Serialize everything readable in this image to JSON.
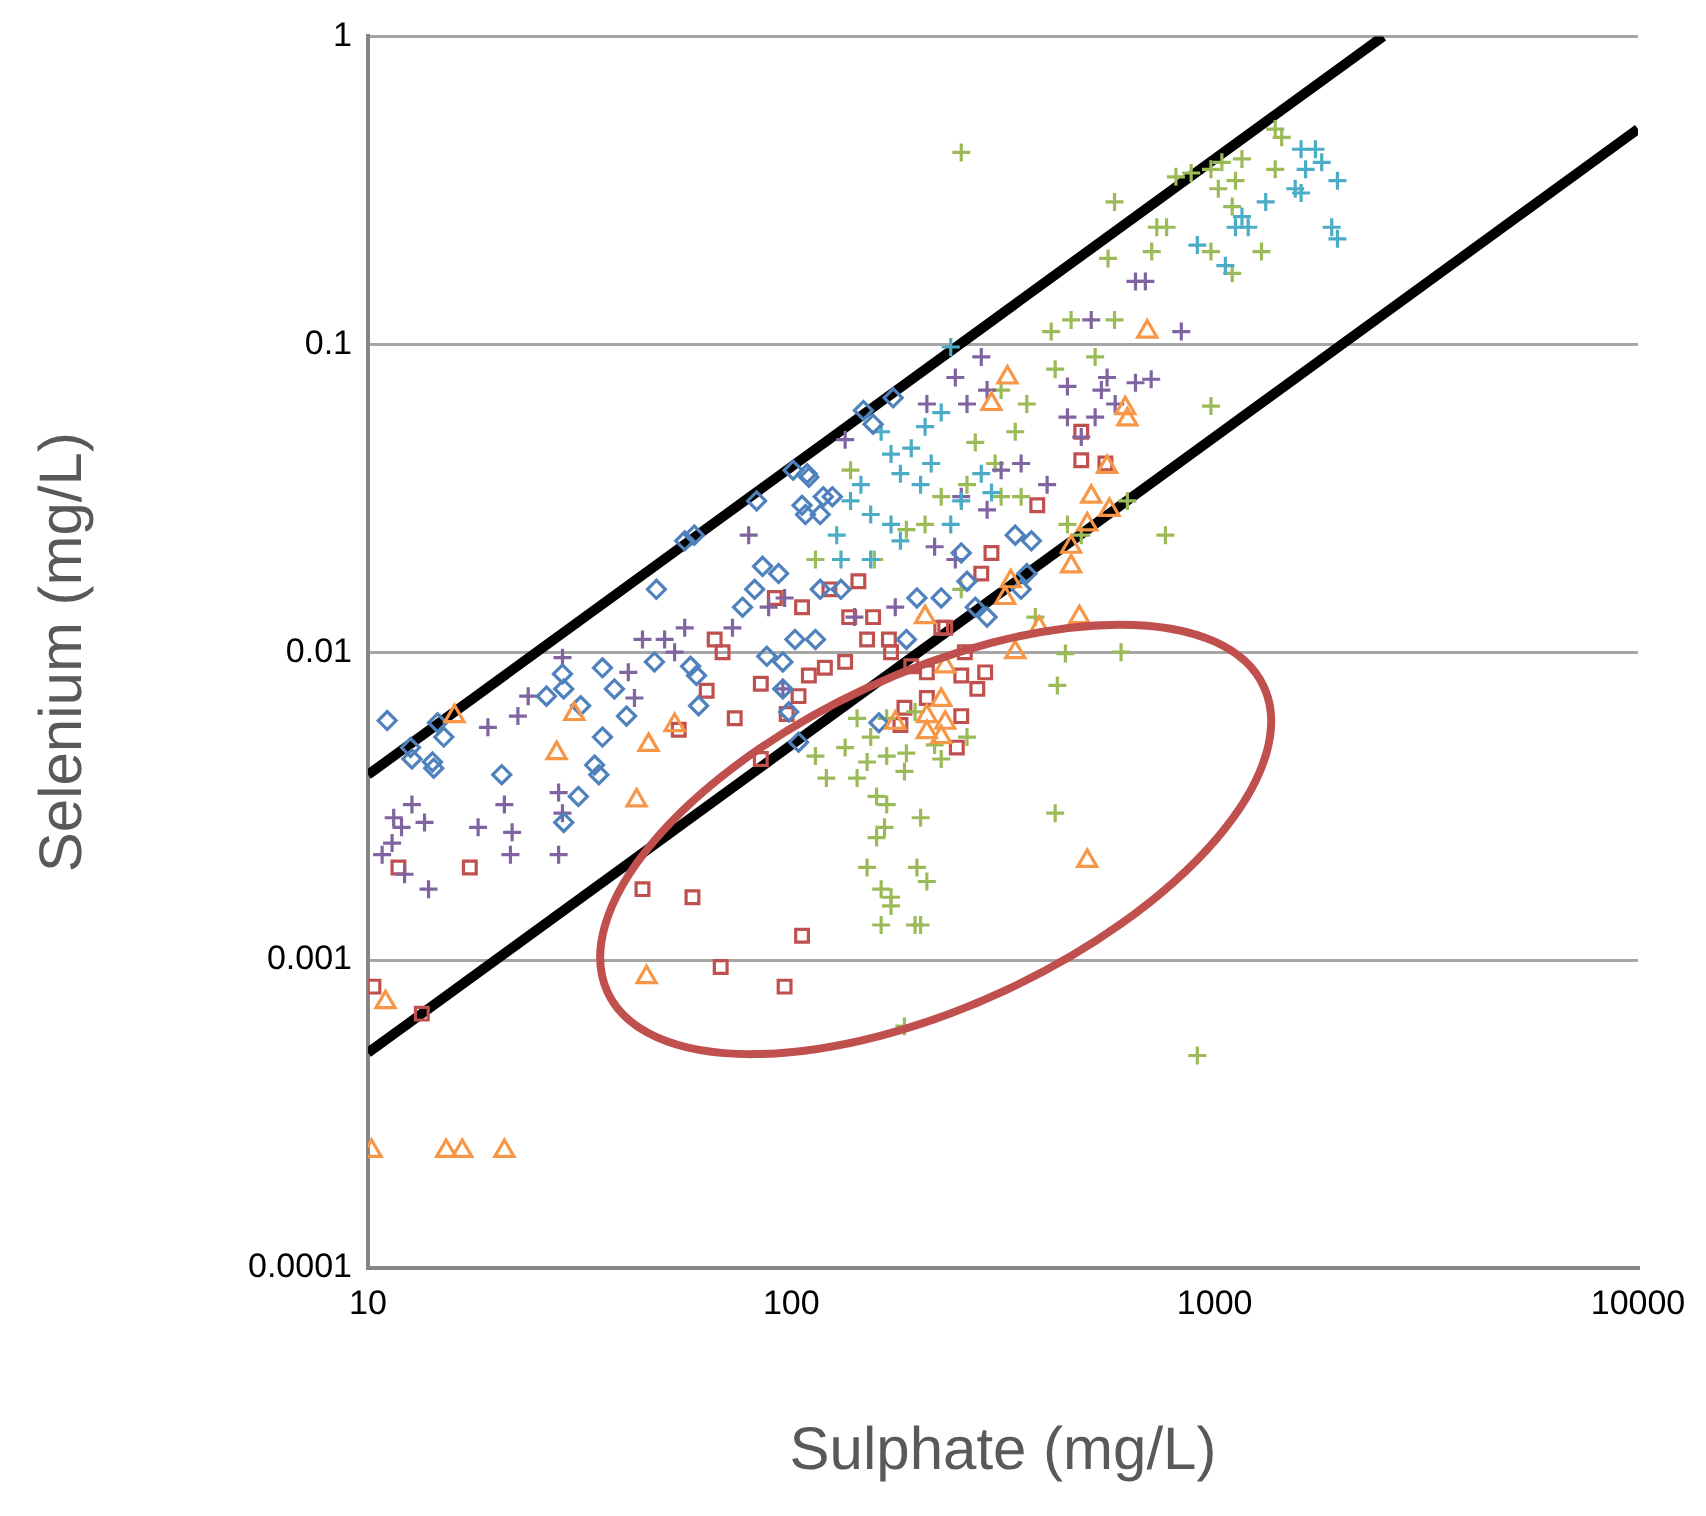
{
  "chart_data": {
    "type": "scatter",
    "xlabel": "Sulphate (mg/L)",
    "ylabel": "Selenium (mg/L)",
    "log": "xy",
    "xlim": [
      10,
      10000
    ],
    "xticks": [
      10,
      100,
      1000,
      10000
    ],
    "ylim": [
      0.0001,
      1
    ],
    "yticks": [
      0.0001,
      0.001,
      0.01,
      0.1,
      1
    ],
    "grid": "y",
    "legend": false,
    "series": [
      {
        "color": "#4f81bd",
        "marker": "diamond",
        "x": [
          11.1,
          12.6,
          12.7,
          14.2,
          14.3,
          14.6,
          15.1,
          20.7,
          26.4,
          28.8,
          29.0,
          31.4,
          29.0,
          31.8,
          35.8,
          35.8,
          34.3,
          35.1,
          38.2,
          40.8,
          47.5,
          48.0,
          56.0,
          59.0,
          57.8,
          59.7,
          60.4,
          76.7,
          81.9,
          82.8,
          85.5,
          93.3,
          101,
          106,
          110,
          119,
          125,
          148,
          156,
          87.5,
          95.5,
          95.5,
          98.6,
          102,
          114,
          104,
          161,
          174,
          109,
          108,
          117,
          117,
          131,
          198,
          226,
          260,
          272,
          187,
          338,
          369,
          360,
          349,
          290,
          252
        ],
        "values": [
          0.006,
          0.0049,
          0.0045,
          0.0044,
          0.0042,
          0.0059,
          0.0053,
          0.004,
          0.0072,
          0.0085,
          0.0076,
          0.0034,
          0.0028,
          0.0067,
          0.0089,
          0.0053,
          0.0043,
          0.004,
          0.0076,
          0.0062,
          0.0093,
          0.016,
          0.023,
          0.024,
          0.009,
          0.0084,
          0.0067,
          0.014,
          0.016,
          0.031,
          0.019,
          0.018,
          0.039,
          0.03,
          0.037,
          0.032,
          0.032,
          0.061,
          0.055,
          0.0097,
          0.0093,
          0.0076,
          0.0064,
          0.011,
          0.011,
          0.0051,
          0.0059,
          0.067,
          0.038,
          0.028,
          0.028,
          0.016,
          0.016,
          0.015,
          0.015,
          0.017,
          0.014,
          0.011,
          0.024,
          0.023,
          0.018,
          0.016,
          0.013,
          0.021
        ]
      },
      {
        "color": "#4bacc6",
        "marker": "cross",
        "x": [
          238,
          163,
          172,
          181,
          192,
          202,
          146,
          138,
          154,
          172,
          214,
          226,
          207,
          128,
          131,
          154,
          181,
          252,
          281,
          297,
          238,
          1600,
          1730,
          1640,
          1790,
          1550,
          1600,
          1950,
          1320,
          1160,
          1120,
          1200,
          910,
          1060,
          1890,
          1950
        ],
        "values": [
          0.098,
          0.052,
          0.044,
          0.038,
          0.046,
          0.035,
          0.035,
          0.031,
          0.028,
          0.026,
          0.041,
          0.06,
          0.054,
          0.024,
          0.02,
          0.02,
          0.023,
          0.031,
          0.038,
          0.033,
          0.026,
          0.43,
          0.43,
          0.37,
          0.39,
          0.32,
          0.31,
          0.34,
          0.29,
          0.26,
          0.24,
          0.24,
          0.21,
          0.18,
          0.24,
          0.22
        ]
      },
      {
        "color": "#8064a2",
        "marker": "cross",
        "x": [
          10.8,
          11.4,
          12.0,
          12.7,
          13.6,
          12.2,
          13.9,
          11.5,
          19.2,
          18.2,
          21.7,
          21.9,
          21.0,
          22.6,
          23.9,
          28.8,
          28.2,
          28.2,
          28.8,
          41.2,
          42.6,
          44.5,
          50.2,
          53.0,
          56.0,
          79.3,
          88.4,
          96.4,
          134,
          95.5,
          72.6,
          650,
          686,
          834,
          511,
          557,
          540,
          650,
          708,
          582,
          522,
          244,
          281,
          290,
          260,
          209,
          449,
          349,
          313,
          402,
          252,
          290,
          218,
          244,
          176,
          141,
          449,
          484
        ],
        "values": [
          0.0022,
          0.0024,
          0.0027,
          0.0032,
          0.0028,
          0.0019,
          0.0017,
          0.0029,
          0.0057,
          0.0027,
          0.0022,
          0.0026,
          0.0032,
          0.0062,
          0.0072,
          0.0096,
          0.0035,
          0.0022,
          0.003,
          0.0086,
          0.0071,
          0.011,
          0.011,
          0.01,
          0.012,
          0.024,
          0.014,
          0.015,
          0.049,
          0.0076,
          0.012,
          0.16,
          0.16,
          0.11,
          0.12,
          0.078,
          0.071,
          0.075,
          0.077,
          0.064,
          0.058,
          0.078,
          0.091,
          0.071,
          0.064,
          0.064,
          0.058,
          0.041,
          0.039,
          0.035,
          0.032,
          0.029,
          0.022,
          0.02,
          0.014,
          0.013,
          0.073,
          0.05
        ]
      },
      {
        "color": "#9bbb59",
        "marker": "cross",
        "x": [
          1390,
          1440,
          1160,
          1040,
          980,
          880,
          810,
          1390,
          1120,
          1020,
          1100,
          580,
          770,
          730,
          710,
          560,
          1290,
          980,
          1100,
          252,
          458,
          580,
          522,
          411,
          420,
          360,
          313,
          338,
          272,
          303,
          260,
          226,
          207,
          187,
          313,
          349,
          449,
          484,
          157,
          138,
          114,
          622,
          765,
          980,
          252,
          377,
          134,
          114,
          121,
          143,
          151,
          159,
          168,
          166,
          159,
          151,
          163,
          172,
          172,
          163,
          198,
          209,
          202,
          196,
          202,
          185,
          187,
          218,
          226,
          260,
          168,
          154,
          143,
          168,
          196,
          185,
          420,
          425,
          444,
          601,
          910
        ],
        "values": [
          0.5,
          0.47,
          0.4,
          0.39,
          0.37,
          0.36,
          0.35,
          0.37,
          0.34,
          0.32,
          0.28,
          0.29,
          0.24,
          0.24,
          0.2,
          0.19,
          0.2,
          0.2,
          0.17,
          0.42,
          0.12,
          0.12,
          0.091,
          0.11,
          0.083,
          0.064,
          0.071,
          0.052,
          0.048,
          0.041,
          0.035,
          0.032,
          0.026,
          0.025,
          0.032,
          0.032,
          0.026,
          0.024,
          0.02,
          0.039,
          0.02,
          0.031,
          0.024,
          0.063,
          0.016,
          0.013,
          0.0049,
          0.0046,
          0.0039,
          0.0039,
          0.0044,
          0.0034,
          0.0032,
          0.0027,
          0.0025,
          0.002,
          0.0017,
          0.0016,
          0.0015,
          0.0013,
          0.002,
          0.0018,
          0.0013,
          0.0013,
          0.0029,
          0.0041,
          0.0047,
          0.005,
          0.0045,
          0.0053,
          0.0046,
          0.0053,
          0.0061,
          0.0061,
          0.0064,
          0.00061,
          0.003,
          0.0078,
          0.0099,
          0.01,
          0.00049
        ]
      },
      {
        "color": "#c0504d",
        "marker": "square",
        "x": [
          11.8,
          17.4,
          44.5,
          58.4,
          65.9,
          68.8,
          63.1,
          73.5,
          54.2,
          84.7,
          84.7,
          97.5,
          104,
          110,
          120,
          134,
          106,
          123,
          144,
          137,
          151,
          156,
          170,
          91.4,
          106,
          10.3,
          13.4,
          68.1,
          96.4,
          172,
          192,
          209,
          252,
          287,
          275,
          252,
          209,
          185,
          181,
          246,
          226,
          257,
          484,
          484,
          552,
          381,
          297,
          281,
          231
        ],
        "values": [
          0.002,
          0.002,
          0.0017,
          0.0016,
          0.011,
          0.01,
          0.0075,
          0.0061,
          0.0056,
          0.0079,
          0.0045,
          0.0063,
          0.0072,
          0.0084,
          0.0089,
          0.0093,
          0.014,
          0.016,
          0.017,
          0.013,
          0.011,
          0.013,
          0.011,
          0.015,
          0.0012,
          0.00082,
          0.00067,
          0.00095,
          0.00082,
          0.01,
          0.009,
          0.0086,
          0.0084,
          0.0086,
          0.0076,
          0.0062,
          0.0071,
          0.0066,
          0.0058,
          0.0049,
          0.012,
          0.01,
          0.052,
          0.042,
          0.041,
          0.03,
          0.021,
          0.018,
          0.012
        ]
      },
      {
        "color": "#f79646",
        "marker": "triangle",
        "x": [
          16.0,
          30.7,
          27.9,
          53.0,
          46.0,
          43.1,
          11.0,
          10.2,
          15.3,
          16.7,
          21.0,
          45.5,
          500,
          226,
          209,
          231,
          209,
          226,
          176,
          231,
          207,
          385,
          338,
          479,
          693,
          615,
          622,
          297,
          324,
          557,
          511,
          564,
          500,
          458,
          458,
          330,
          320
        ],
        "values": [
          0.0062,
          0.0063,
          0.0047,
          0.0058,
          0.005,
          0.0033,
          0.00073,
          0.00024,
          0.00024,
          0.00024,
          0.00024,
          0.00088,
          0.0021,
          0.007,
          0.0062,
          0.0059,
          0.0055,
          0.0053,
          0.0059,
          0.009,
          0.013,
          0.012,
          0.01,
          0.013,
          0.11,
          0.062,
          0.057,
          0.064,
          0.078,
          0.04,
          0.032,
          0.029,
          0.026,
          0.022,
          0.019,
          0.017,
          0.015
        ]
      },
      {
        "type": "line",
        "color": "#000000",
        "marker": "none",
        "x": [
          10,
          2500
        ],
        "values": [
          0.004,
          1
        ]
      },
      {
        "type": "line",
        "color": "#000000",
        "marker": "none",
        "x": [
          10,
          10000
        ],
        "values": [
          0.0005,
          0.5
        ]
      }
    ]
  }
}
